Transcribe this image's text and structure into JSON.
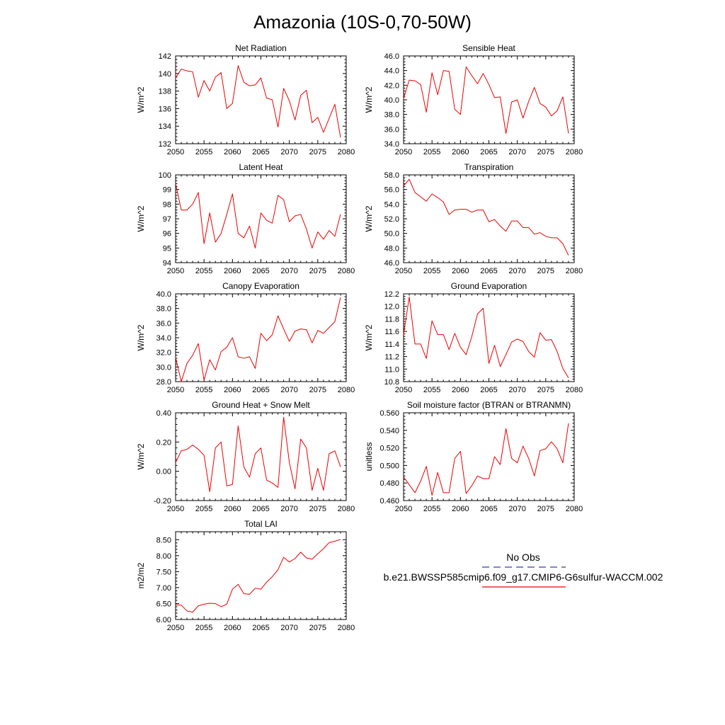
{
  "page_title": "Amazonia (10S-0,70-50W)",
  "series_color": "#ee0000",
  "obs_color": "#3a3a9a",
  "legend": {
    "obs_label": "No Obs",
    "model_label": "b.e21.BWSSP585cmip6.f09_g17.CMIP6-G6sulfur-WACCM.002"
  },
  "chart_data": [
    {
      "type": "line",
      "title": "Net Radiation",
      "ylabel": "W/m^2",
      "xlim": [
        2050,
        2080
      ],
      "xticks": [
        "2050",
        "2055",
        "2060",
        "2065",
        "2070",
        "2075",
        "2080"
      ],
      "ylim": [
        132,
        142
      ],
      "yticks": [
        "132",
        "134",
        "136",
        "138",
        "140",
        "142"
      ],
      "x": [
        2050,
        2051,
        2052,
        2053,
        2054,
        2055,
        2056,
        2057,
        2058,
        2059,
        2060,
        2061,
        2062,
        2063,
        2064,
        2065,
        2066,
        2067,
        2068,
        2069,
        2070,
        2071,
        2072,
        2073,
        2074,
        2075,
        2076,
        2077,
        2078,
        2079
      ],
      "series": [
        {
          "values": [
            139.5,
            140.5,
            140.3,
            140.2,
            137.3,
            139.2,
            138.0,
            139.6,
            140.1,
            136.0,
            136.6,
            140.9,
            139.0,
            138.6,
            138.7,
            139.5,
            137.2,
            137.0,
            133.9,
            138.3,
            136.9,
            134.7,
            137.5,
            138.1,
            134.4,
            135.0,
            133.3,
            134.9,
            136.5,
            132.7
          ]
        }
      ]
    },
    {
      "type": "line",
      "title": "Sensible Heat",
      "ylabel": "W/m^2",
      "xlim": [
        2050,
        2080
      ],
      "xticks": [
        "2050",
        "2055",
        "2060",
        "2065",
        "2070",
        "2075",
        "2080"
      ],
      "ylim": [
        34,
        46
      ],
      "yticks": [
        "34.0",
        "36.0",
        "38.0",
        "40.0",
        "42.0",
        "44.0",
        "46.0"
      ],
      "x": [
        2050,
        2051,
        2052,
        2053,
        2054,
        2055,
        2056,
        2057,
        2058,
        2059,
        2060,
        2061,
        2062,
        2063,
        2064,
        2065,
        2066,
        2067,
        2068,
        2069,
        2070,
        2071,
        2072,
        2073,
        2074,
        2075,
        2076,
        2077,
        2078,
        2079
      ],
      "series": [
        {
          "values": [
            40.2,
            42.7,
            42.6,
            42.1,
            38.3,
            43.7,
            40.7,
            44.0,
            43.9,
            38.7,
            38.0,
            44.5,
            43.3,
            42.2,
            43.6,
            42.1,
            40.3,
            40.4,
            35.4,
            39.7,
            40.0,
            37.5,
            39.8,
            41.7,
            39.5,
            39.0,
            37.8,
            38.5,
            40.4,
            35.4
          ]
        }
      ]
    },
    {
      "type": "line",
      "title": "Latent Heat",
      "ylabel": "W/m^2",
      "xlim": [
        2050,
        2080
      ],
      "xticks": [
        "2050",
        "2055",
        "2060",
        "2065",
        "2070",
        "2075",
        "2080"
      ],
      "ylim": [
        94,
        100
      ],
      "yticks": [
        "94",
        "95",
        "96",
        "97",
        "98",
        "99",
        "100"
      ],
      "x": [
        2050,
        2051,
        2052,
        2053,
        2054,
        2055,
        2056,
        2057,
        2058,
        2059,
        2060,
        2061,
        2062,
        2063,
        2064,
        2065,
        2066,
        2067,
        2068,
        2069,
        2070,
        2071,
        2072,
        2073,
        2074,
        2075,
        2076,
        2077,
        2078,
        2079
      ],
      "series": [
        {
          "values": [
            99.4,
            97.6,
            97.6,
            98.0,
            98.8,
            95.3,
            97.4,
            95.4,
            96.0,
            97.3,
            98.7,
            96.0,
            95.7,
            96.5,
            95.0,
            97.4,
            96.9,
            96.7,
            98.6,
            98.3,
            96.8,
            97.2,
            97.3,
            96.3,
            95.0,
            96.1,
            95.6,
            96.2,
            95.8,
            97.3
          ]
        }
      ]
    },
    {
      "type": "line",
      "title": "Transpiration",
      "ylabel": "W/m^2",
      "xlim": [
        2050,
        2080
      ],
      "xticks": [
        "2050",
        "2055",
        "2060",
        "2065",
        "2070",
        "2075",
        "2080"
      ],
      "ylim": [
        46,
        58
      ],
      "yticks": [
        "46.0",
        "48.0",
        "50.0",
        "52.0",
        "54.0",
        "56.0",
        "58.0"
      ],
      "x": [
        2050,
        2051,
        2052,
        2053,
        2054,
        2055,
        2056,
        2057,
        2058,
        2059,
        2060,
        2061,
        2062,
        2063,
        2064,
        2065,
        2066,
        2067,
        2068,
        2069,
        2070,
        2071,
        2072,
        2073,
        2074,
        2075,
        2076,
        2077,
        2078,
        2079
      ],
      "series": [
        {
          "values": [
            56.5,
            57.4,
            55.6,
            55.0,
            54.4,
            55.4,
            54.9,
            54.3,
            52.6,
            53.2,
            53.3,
            53.3,
            52.9,
            53.2,
            53.2,
            51.6,
            51.9,
            51.0,
            50.3,
            51.7,
            51.7,
            50.8,
            50.8,
            49.9,
            50.1,
            49.6,
            49.4,
            49.4,
            48.6,
            47.0
          ]
        }
      ]
    },
    {
      "type": "line",
      "title": "Canopy Evaporation",
      "ylabel": "W/m^2",
      "xlim": [
        2050,
        2080
      ],
      "xticks": [
        "2050",
        "2055",
        "2060",
        "2065",
        "2070",
        "2075",
        "2080"
      ],
      "ylim": [
        28,
        40
      ],
      "yticks": [
        "28.0",
        "30.0",
        "32.0",
        "34.0",
        "36.0",
        "38.0",
        "40.0"
      ],
      "x": [
        2050,
        2051,
        2052,
        2053,
        2054,
        2055,
        2056,
        2057,
        2058,
        2059,
        2060,
        2061,
        2062,
        2063,
        2064,
        2065,
        2066,
        2067,
        2068,
        2069,
        2070,
        2071,
        2072,
        2073,
        2074,
        2075,
        2076,
        2077,
        2078,
        2079
      ],
      "series": [
        {
          "values": [
            31.3,
            28.0,
            30.5,
            31.6,
            33.2,
            28.2,
            31.0,
            29.6,
            32.1,
            32.7,
            34.0,
            31.4,
            31.2,
            31.4,
            29.8,
            34.6,
            33.6,
            34.4,
            37.0,
            35.2,
            33.5,
            34.9,
            35.2,
            35.1,
            33.3,
            35.0,
            34.6,
            35.4,
            36.2,
            39.5
          ]
        }
      ]
    },
    {
      "type": "line",
      "title": "Ground Evaporation",
      "ylabel": "W/m^2",
      "xlim": [
        2050,
        2080
      ],
      "xticks": [
        "2050",
        "2055",
        "2060",
        "2065",
        "2070",
        "2075",
        "2080"
      ],
      "ylim": [
        10.8,
        12.2
      ],
      "yticks": [
        "10.8",
        "11.0",
        "11.2",
        "11.4",
        "11.6",
        "11.8",
        "12.0",
        "12.2"
      ],
      "x": [
        2050,
        2051,
        2052,
        2053,
        2054,
        2055,
        2056,
        2057,
        2058,
        2059,
        2060,
        2061,
        2062,
        2063,
        2064,
        2065,
        2066,
        2067,
        2068,
        2069,
        2070,
        2071,
        2072,
        2073,
        2074,
        2075,
        2076,
        2077,
        2078,
        2079
      ],
      "series": [
        {
          "values": [
            11.55,
            12.15,
            11.4,
            11.4,
            11.17,
            11.77,
            11.55,
            11.55,
            11.31,
            11.57,
            11.35,
            11.23,
            11.52,
            11.88,
            11.97,
            11.09,
            11.38,
            11.04,
            11.23,
            11.43,
            11.48,
            11.44,
            11.28,
            11.19,
            11.58,
            11.46,
            11.47,
            11.28,
            11.01,
            10.86
          ]
        }
      ]
    },
    {
      "type": "line",
      "title": "Ground Heat + Snow Melt",
      "ylabel": "W/m^2",
      "xlim": [
        2050,
        2080
      ],
      "xticks": [
        "2050",
        "2055",
        "2060",
        "2065",
        "2070",
        "2075",
        "2080"
      ],
      "ylim": [
        -0.2,
        0.4
      ],
      "yticks": [
        "-0.20",
        "0.00",
        "0.20",
        "0.40"
      ],
      "x": [
        2050,
        2051,
        2052,
        2053,
        2054,
        2055,
        2056,
        2057,
        2058,
        2059,
        2060,
        2061,
        2062,
        2063,
        2064,
        2065,
        2066,
        2067,
        2068,
        2069,
        2070,
        2071,
        2072,
        2073,
        2074,
        2075,
        2076,
        2077,
        2078,
        2079
      ],
      "series": [
        {
          "values": [
            0.06,
            0.14,
            0.15,
            0.18,
            0.15,
            0.11,
            -0.14,
            0.16,
            0.2,
            -0.1,
            -0.09,
            0.31,
            0.03,
            -0.04,
            0.12,
            0.16,
            -0.06,
            -0.08,
            -0.11,
            0.37,
            0.06,
            -0.12,
            0.22,
            0.16,
            -0.13,
            0.02,
            -0.13,
            0.12,
            0.14,
            0.03
          ]
        }
      ]
    },
    {
      "type": "line",
      "title": "Soil moisture factor (BTRAN or BTRANMN)",
      "ylabel": "unitless",
      "xlim": [
        2050,
        2080
      ],
      "xticks": [
        "2050",
        "2055",
        "2060",
        "2065",
        "2070",
        "2075",
        "2080"
      ],
      "ylim": [
        0.46,
        0.56
      ],
      "yticks": [
        "0.460",
        "0.480",
        "0.500",
        "0.520",
        "0.540",
        "0.560"
      ],
      "x": [
        2050,
        2051,
        2052,
        2053,
        2054,
        2055,
        2056,
        2057,
        2058,
        2059,
        2060,
        2061,
        2062,
        2063,
        2064,
        2065,
        2066,
        2067,
        2068,
        2069,
        2070,
        2071,
        2072,
        2073,
        2074,
        2075,
        2076,
        2077,
        2078,
        2079
      ],
      "series": [
        {
          "values": [
            0.487,
            0.478,
            0.469,
            0.482,
            0.499,
            0.466,
            0.492,
            0.469,
            0.469,
            0.508,
            0.516,
            0.468,
            0.477,
            0.488,
            0.485,
            0.485,
            0.51,
            0.501,
            0.542,
            0.508,
            0.503,
            0.522,
            0.508,
            0.488,
            0.517,
            0.519,
            0.527,
            0.519,
            0.503,
            0.548
          ]
        }
      ]
    },
    {
      "type": "line",
      "title": "Total LAI",
      "ylabel": "m2/m2",
      "xlim": [
        2050,
        2080
      ],
      "xticks": [
        "2050",
        "2055",
        "2060",
        "2065",
        "2070",
        "2075",
        "2080"
      ],
      "ylim": [
        6.0,
        8.75
      ],
      "yticks": [
        "6.00",
        "6.50",
        "7.00",
        "7.50",
        "8.00",
        "8.50"
      ],
      "x": [
        2050,
        2051,
        2052,
        2053,
        2054,
        2055,
        2056,
        2057,
        2058,
        2059,
        2060,
        2061,
        2062,
        2063,
        2064,
        2065,
        2066,
        2067,
        2068,
        2069,
        2070,
        2071,
        2072,
        2073,
        2074,
        2075,
        2076,
        2077,
        2078,
        2079
      ],
      "series": [
        {
          "values": [
            6.46,
            6.45,
            6.27,
            6.23,
            6.43,
            6.48,
            6.51,
            6.5,
            6.4,
            6.48,
            6.95,
            7.1,
            6.81,
            6.79,
            6.98,
            6.95,
            7.17,
            7.34,
            7.56,
            7.95,
            7.8,
            7.91,
            8.11,
            7.93,
            7.89,
            8.06,
            8.22,
            8.41,
            8.45,
            8.51
          ]
        }
      ]
    }
  ]
}
